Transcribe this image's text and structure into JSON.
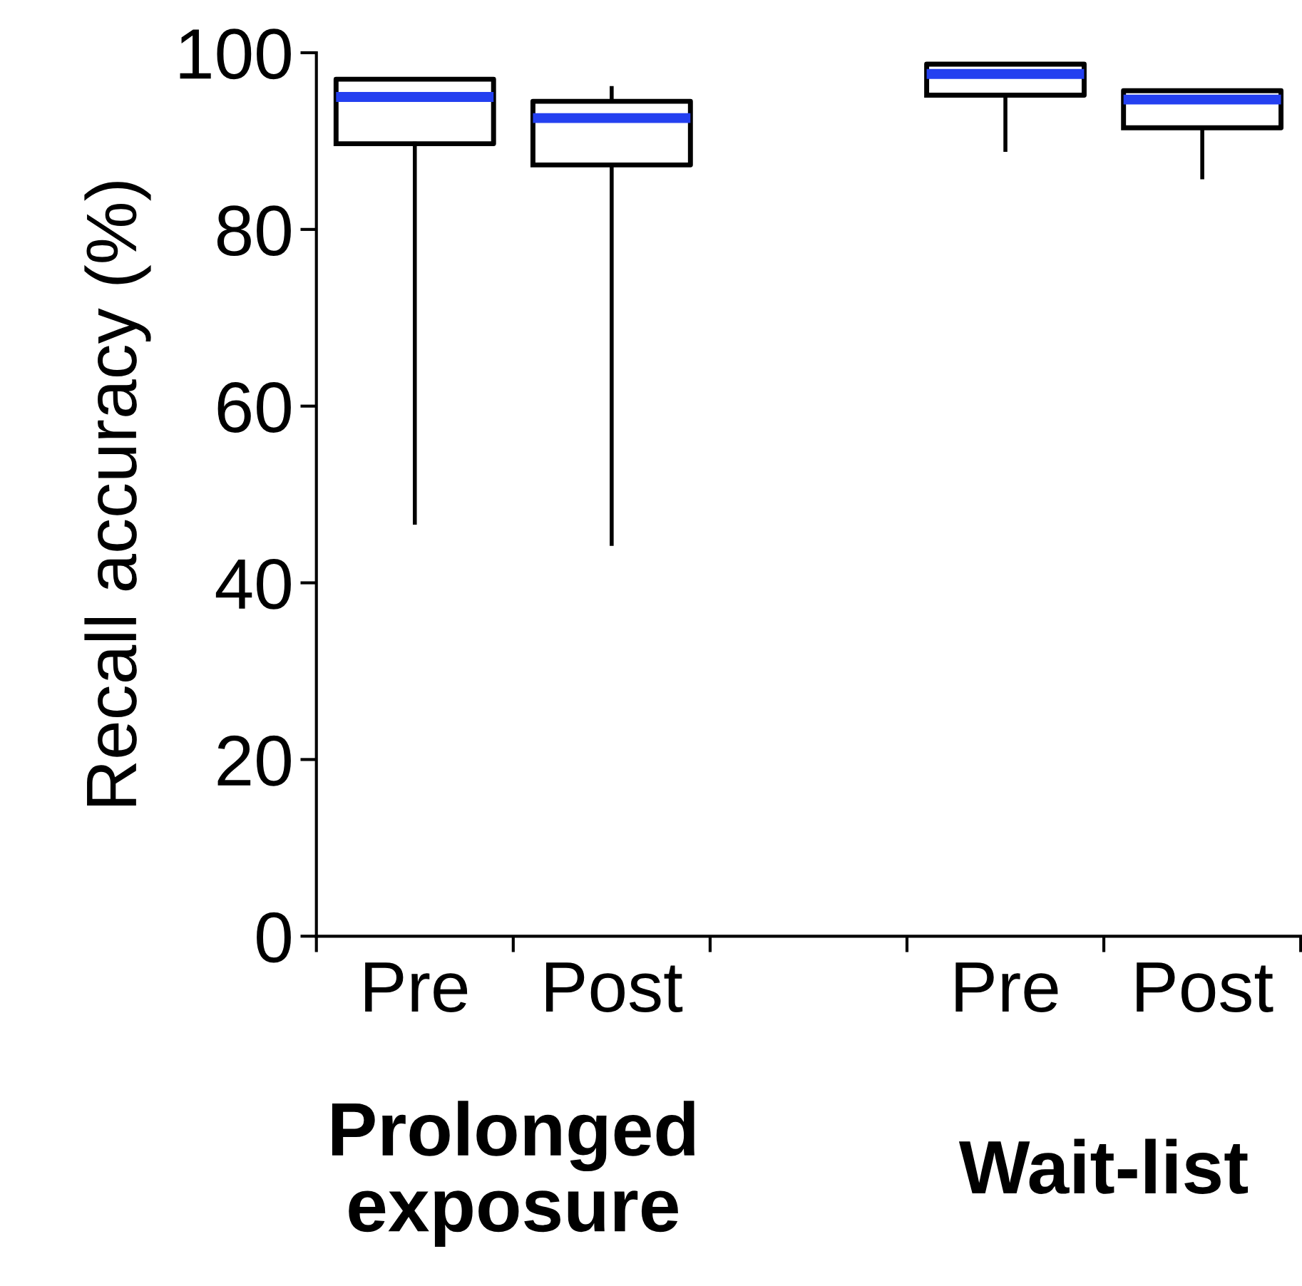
{
  "chart_data": {
    "type": "box",
    "ylabel": "Recall accuracy (%)",
    "categories": [
      "Pre",
      "Post",
      null,
      "Pre",
      "Post"
    ],
    "boxes": [
      {
        "low": 46.8,
        "q1": 89.7,
        "median": 95.0,
        "q3": 97.0,
        "high": 97.0
      },
      {
        "low": 44.4,
        "q1": 87.3,
        "median": 92.6,
        "q3": 94.5,
        "high": 96.0
      },
      null,
      {
        "low": 89.0,
        "q1": 95.2,
        "median": 97.6,
        "q3": 98.7,
        "high": 98.7
      },
      {
        "low": 85.9,
        "q1": 91.5,
        "median": 94.7,
        "q3": 95.7,
        "high": 95.7
      }
    ],
    "color": "#000000",
    "ylim": [
      0,
      100
    ],
    "yticks": [
      0,
      20,
      40,
      60,
      80,
      100
    ],
    "grid": false,
    "annotations": [
      "Prolonged exposure",
      "Wait-list"
    ]
  }
}
